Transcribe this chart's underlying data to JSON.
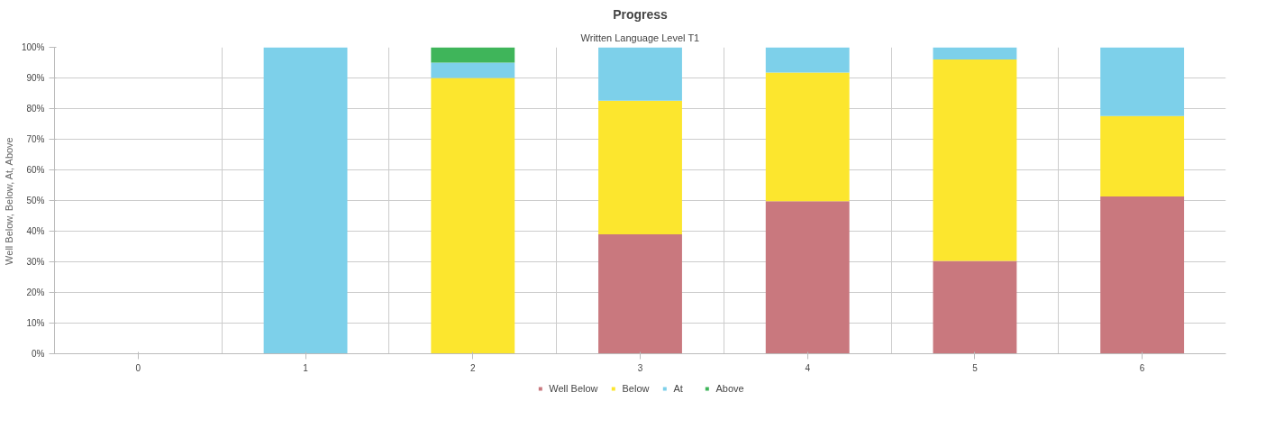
{
  "chart_data": {
    "type": "bar",
    "title": "Progress",
    "subtitle": "Written Language Level T1",
    "ylabel": "Well Below, Below, At, Above",
    "categories": [
      "0",
      "1",
      "2",
      "3",
      "4",
      "5",
      "6"
    ],
    "stacked": true,
    "series": [
      {
        "name": "Well Below",
        "color": "#c9787e",
        "values": [
          0,
          0,
          0,
          39,
          49.8,
          30.3,
          51.3
        ]
      },
      {
        "name": "Below",
        "color": "#fce62e",
        "values": [
          0,
          0,
          90,
          43.6,
          42,
          65.7,
          26.3
        ]
      },
      {
        "name": "At",
        "color": "#7dd0ea",
        "values": [
          0,
          100,
          5,
          17.4,
          8.2,
          4,
          22.4
        ]
      },
      {
        "name": "Above",
        "color": "#3fb55a",
        "values": [
          0,
          0,
          5,
          0,
          0,
          0,
          0
        ]
      }
    ],
    "ylim": [
      0,
      100
    ],
    "yticks": [
      {
        "value": 0,
        "label": "0%"
      },
      {
        "value": 10,
        "label": "10%"
      },
      {
        "value": 20,
        "label": "20%"
      },
      {
        "value": 30,
        "label": "30%"
      },
      {
        "value": 40,
        "label": "40%"
      },
      {
        "value": 50,
        "label": "50%"
      },
      {
        "value": 60,
        "label": "60%"
      },
      {
        "value": 70,
        "label": "70%"
      },
      {
        "value": 80,
        "label": "80%"
      },
      {
        "value": 90,
        "label": "90%"
      },
      {
        "value": 100,
        "label": "100%"
      }
    ],
    "grid": true,
    "legend": "bottom"
  }
}
